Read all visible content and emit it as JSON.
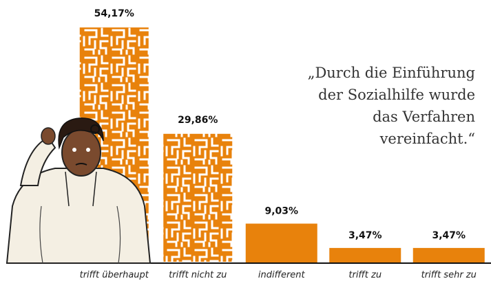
{
  "chart_data": {
    "type": "bar",
    "title": [
      "„Durch die Einführung",
      "der Sozialhilfe wurde",
      "das Verfahren",
      "vereinfacht.“"
    ],
    "categories": [
      "trifft überhaupt",
      "trifft nicht zu",
      "indifferent",
      "trifft zu",
      "trifft sehr zu"
    ],
    "values": [
      54.17,
      29.86,
      9.03,
      3.47,
      3.47
    ],
    "value_labels": [
      "54,17%",
      "29,86%",
      "9,03%",
      "3,47%",
      "3,47%"
    ],
    "color": "#e8820c"
  }
}
